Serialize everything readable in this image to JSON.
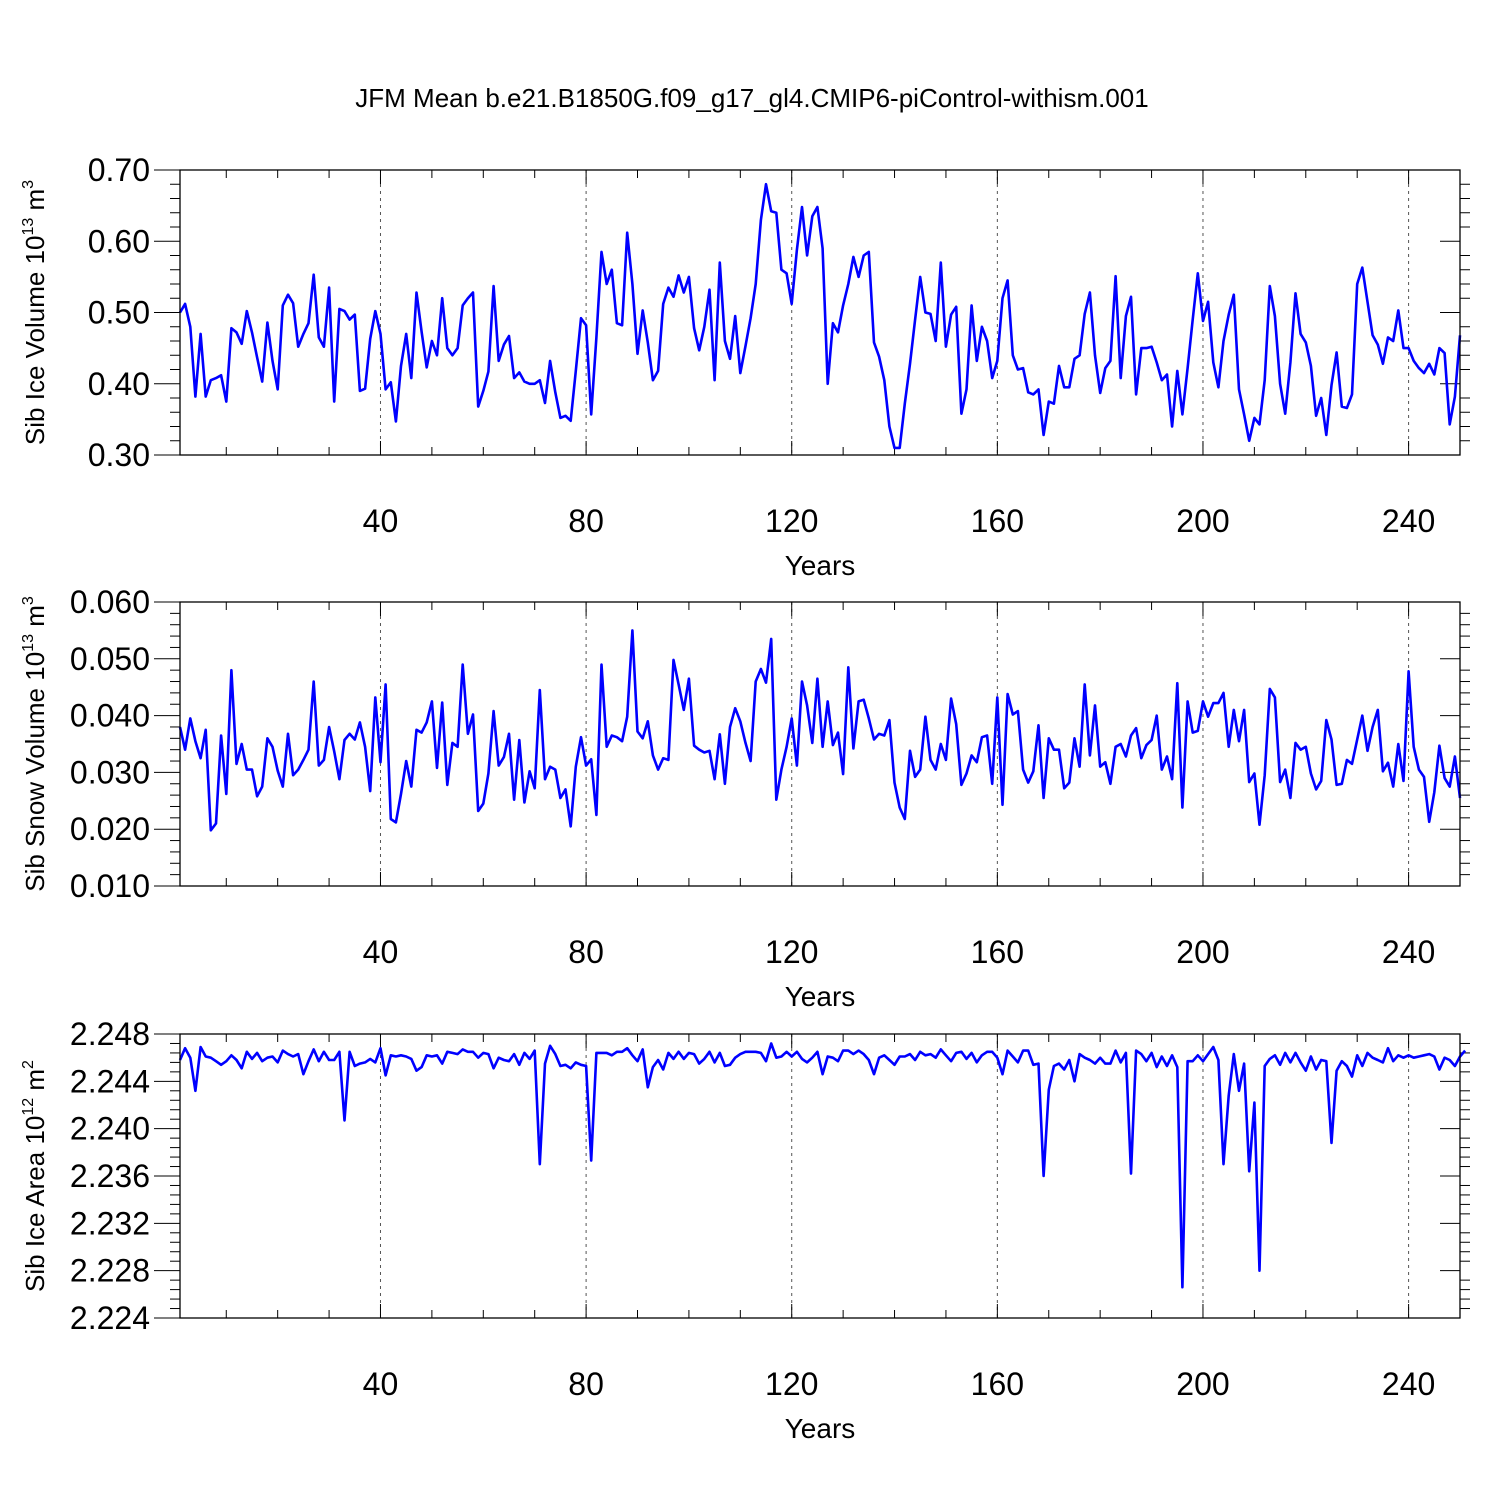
{
  "figure_title": "JFM Mean b.e21.B1850G.f09_g17_gl4.CMIP6-piControl-withism.001",
  "chart_data": [
    {
      "type": "line",
      "ylabel_main": "Sib Ice Volume 10",
      "ylabel_exp": "13",
      "ylabel_unit": " m",
      "ylabel_unit_exp": "3",
      "xlabel": "Years",
      "xlim": [
        1,
        250
      ],
      "ylim": [
        0.3,
        0.7
      ],
      "xticks": [
        40,
        80,
        120,
        160,
        200,
        240
      ],
      "yticks": [
        0.3,
        0.4,
        0.5,
        0.6,
        0.7
      ],
      "ytick_labels": [
        "0.30",
        "0.40",
        "0.50",
        "0.60",
        "0.70"
      ],
      "grid_x": true,
      "color": "#0000ff",
      "values": [
        0.5,
        0.512,
        0.48,
        0.382,
        0.47,
        0.382,
        0.405,
        0.408,
        0.412,
        0.375,
        0.478,
        0.472,
        0.456,
        0.502,
        0.472,
        0.437,
        0.403,
        0.486,
        0.432,
        0.392,
        0.51,
        0.525,
        0.513,
        0.452,
        0.47,
        0.485,
        0.553,
        0.465,
        0.452,
        0.535,
        0.375,
        0.505,
        0.502,
        0.49,
        0.497,
        0.39,
        0.393,
        0.463,
        0.502,
        0.47,
        0.392,
        0.402,
        0.347,
        0.425,
        0.47,
        0.408,
        0.528,
        0.473,
        0.423,
        0.46,
        0.44,
        0.52,
        0.45,
        0.44,
        0.45,
        0.51,
        0.52,
        0.528,
        0.368,
        0.39,
        0.417,
        0.537,
        0.432,
        0.455,
        0.467,
        0.408,
        0.416,
        0.403,
        0.4,
        0.4,
        0.405,
        0.373,
        0.432,
        0.388,
        0.352,
        0.355,
        0.348,
        0.418,
        0.492,
        0.482,
        0.357,
        0.465,
        0.585,
        0.54,
        0.56,
        0.485,
        0.482,
        0.612,
        0.54,
        0.442,
        0.503,
        0.458,
        0.405,
        0.418,
        0.512,
        0.535,
        0.522,
        0.552,
        0.528,
        0.55,
        0.478,
        0.447,
        0.48,
        0.532,
        0.405,
        0.57,
        0.46,
        0.435,
        0.495,
        0.415,
        0.453,
        0.492,
        0.54,
        0.63,
        0.68,
        0.642,
        0.64,
        0.56,
        0.555,
        0.512,
        0.588,
        0.648,
        0.58,
        0.635,
        0.648,
        0.59,
        0.4,
        0.485,
        0.472,
        0.51,
        0.54,
        0.578,
        0.55,
        0.58,
        0.585,
        0.458,
        0.438,
        0.405,
        0.34,
        0.31,
        0.31,
        0.372,
        0.428,
        0.49,
        0.55,
        0.5,
        0.498,
        0.46,
        0.57,
        0.452,
        0.497,
        0.508,
        0.358,
        0.392,
        0.51,
        0.432,
        0.48,
        0.46,
        0.408,
        0.432,
        0.52,
        0.545,
        0.44,
        0.42,
        0.422,
        0.388,
        0.385,
        0.392,
        0.328,
        0.375,
        0.372,
        0.425,
        0.395,
        0.395,
        0.435,
        0.44,
        0.498,
        0.528,
        0.44,
        0.387,
        0.422,
        0.432,
        0.551,
        0.408,
        0.495,
        0.522,
        0.385,
        0.45,
        0.45,
        0.452,
        0.43,
        0.405,
        0.413,
        0.34,
        0.418,
        0.357,
        0.422,
        0.49,
        0.555,
        0.488,
        0.515,
        0.43,
        0.395,
        0.46,
        0.497,
        0.525,
        0.392,
        0.357,
        0.32,
        0.352,
        0.343,
        0.405,
        0.537,
        0.495,
        0.4,
        0.358,
        0.43,
        0.527,
        0.47,
        0.458,
        0.425,
        0.355,
        0.38,
        0.328,
        0.398,
        0.444,
        0.368,
        0.366,
        0.385,
        0.54,
        0.563,
        0.515,
        0.468,
        0.455,
        0.428,
        0.465,
        0.46,
        0.503,
        0.45,
        0.45,
        0.432,
        0.422,
        0.415,
        0.428,
        0.413,
        0.45,
        0.443,
        0.343,
        0.382,
        0.468
      ]
    },
    {
      "type": "line",
      "ylabel_main": "Sib Snow Volume 10",
      "ylabel_exp": "13",
      "ylabel_unit": " m",
      "ylabel_unit_exp": "3",
      "xlabel": "Years",
      "xlim": [
        1,
        250
      ],
      "ylim": [
        0.01,
        0.06
      ],
      "xticks": [
        40,
        80,
        120,
        160,
        200,
        240
      ],
      "yticks": [
        0.01,
        0.02,
        0.03,
        0.04,
        0.05,
        0.06
      ],
      "ytick_labels": [
        "0.010",
        "0.020",
        "0.030",
        "0.040",
        "0.050",
        "0.060"
      ],
      "grid_x": true,
      "color": "#0000ff",
      "values": [
        0.038,
        0.034,
        0.0395,
        0.0355,
        0.0325,
        0.0375,
        0.0198,
        0.021,
        0.0365,
        0.0262,
        0.048,
        0.0315,
        0.035,
        0.0305,
        0.0305,
        0.0258,
        0.0275,
        0.036,
        0.0345,
        0.0303,
        0.0275,
        0.0368,
        0.0295,
        0.0305,
        0.0322,
        0.034,
        0.046,
        0.0312,
        0.0322,
        0.038,
        0.0337,
        0.0288,
        0.0357,
        0.0368,
        0.0358,
        0.0388,
        0.0345,
        0.0267,
        0.0432,
        0.0318,
        0.0455,
        0.0218,
        0.0212,
        0.0262,
        0.032,
        0.0275,
        0.0375,
        0.037,
        0.0388,
        0.0425,
        0.0308,
        0.0423,
        0.0278,
        0.0352,
        0.0345,
        0.049,
        0.0368,
        0.0402,
        0.0232,
        0.0245,
        0.0298,
        0.0408,
        0.0312,
        0.0327,
        0.0368,
        0.0252,
        0.0357,
        0.0247,
        0.0302,
        0.0272,
        0.0445,
        0.0288,
        0.031,
        0.0305,
        0.0255,
        0.027,
        0.0205,
        0.031,
        0.0362,
        0.0312,
        0.0323,
        0.0225,
        0.049,
        0.0345,
        0.0365,
        0.0362,
        0.0355,
        0.0398,
        0.055,
        0.0372,
        0.036,
        0.039,
        0.033,
        0.0305,
        0.0325,
        0.0322,
        0.0498,
        0.0455,
        0.041,
        0.0465,
        0.0347,
        0.034,
        0.0335,
        0.0338,
        0.0288,
        0.0367,
        0.028,
        0.038,
        0.0413,
        0.039,
        0.0352,
        0.032,
        0.046,
        0.0482,
        0.0458,
        0.0535,
        0.0252,
        0.0305,
        0.0345,
        0.0395,
        0.0312,
        0.046,
        0.0418,
        0.0352,
        0.0465,
        0.0345,
        0.0425,
        0.0348,
        0.037,
        0.0297,
        0.0485,
        0.0342,
        0.0425,
        0.0428,
        0.0395,
        0.0358,
        0.0368,
        0.0365,
        0.0392,
        0.0282,
        0.0238,
        0.0218,
        0.0338,
        0.0292,
        0.0305,
        0.0398,
        0.0322,
        0.0305,
        0.035,
        0.0322,
        0.043,
        0.0385,
        0.0278,
        0.0298,
        0.033,
        0.0318,
        0.0362,
        0.0365,
        0.028,
        0.0432,
        0.0243,
        0.0438,
        0.0402,
        0.0408,
        0.0305,
        0.0282,
        0.0302,
        0.0383,
        0.0255,
        0.036,
        0.034,
        0.034,
        0.0272,
        0.0282,
        0.036,
        0.031,
        0.0455,
        0.033,
        0.0418,
        0.031,
        0.0318,
        0.028,
        0.0345,
        0.035,
        0.0328,
        0.0365,
        0.0378,
        0.0325,
        0.0348,
        0.0357,
        0.04,
        0.0305,
        0.0328,
        0.0288,
        0.0457,
        0.0238,
        0.0425,
        0.037,
        0.0373,
        0.0425,
        0.0398,
        0.0422,
        0.0422,
        0.044,
        0.0345,
        0.041,
        0.0355,
        0.041,
        0.0283,
        0.0298,
        0.0208,
        0.0295,
        0.0447,
        0.0432,
        0.0283,
        0.0305,
        0.0255,
        0.0352,
        0.034,
        0.0345,
        0.0298,
        0.027,
        0.0285,
        0.0392,
        0.0358,
        0.0278,
        0.028,
        0.0322,
        0.0315,
        0.0358,
        0.04,
        0.0338,
        0.038,
        0.041,
        0.0302,
        0.0317,
        0.0275,
        0.035,
        0.0285,
        0.0478,
        0.0345,
        0.0305,
        0.0292,
        0.0213,
        0.0265,
        0.0347,
        0.029,
        0.0275,
        0.0328,
        0.0255
      ]
    },
    {
      "type": "line",
      "ylabel_main": "Sib Ice Area 10",
      "ylabel_exp": "12",
      "ylabel_unit": " m",
      "ylabel_unit_exp": "2",
      "xlabel": "Years",
      "xlim": [
        1,
        250
      ],
      "ylim": [
        2.224,
        2.248
      ],
      "xticks": [
        40,
        80,
        120,
        160,
        200,
        240
      ],
      "yticks": [
        2.224,
        2.228,
        2.232,
        2.236,
        2.24,
        2.244,
        2.248
      ],
      "ytick_labels": [
        "2.224",
        "2.228",
        "2.232",
        "2.236",
        "2.240",
        "2.244",
        "2.248"
      ],
      "grid_x": true,
      "color": "#0000ff",
      "values": [
        2.2458,
        2.2468,
        2.246,
        2.2432,
        2.2469,
        2.2461,
        2.246,
        2.2457,
        2.2454,
        2.2457,
        2.2462,
        2.2458,
        2.2451,
        2.2465,
        2.2459,
        2.2464,
        2.2457,
        2.246,
        2.2461,
        2.2456,
        2.2466,
        2.2463,
        2.2461,
        2.2463,
        2.2446,
        2.2457,
        2.2467,
        2.2457,
        2.2465,
        2.2458,
        2.2458,
        2.2465,
        2.2407,
        2.2465,
        2.2453,
        2.2455,
        2.2456,
        2.2459,
        2.2456,
        2.2468,
        2.2445,
        2.2462,
        2.2461,
        2.2462,
        2.2461,
        2.2459,
        2.2449,
        2.2452,
        2.2462,
        2.2461,
        2.2462,
        2.2455,
        2.2465,
        2.2464,
        2.2463,
        2.2467,
        2.2465,
        2.2465,
        2.246,
        2.2464,
        2.2463,
        2.2451,
        2.246,
        2.2458,
        2.2457,
        2.2463,
        2.2454,
        2.2464,
        2.2459,
        2.2466,
        2.237,
        2.2455,
        2.247,
        2.2463,
        2.2453,
        2.2454,
        2.2451,
        2.2456,
        2.2454,
        2.2453,
        2.2373,
        2.2464,
        2.2464,
        2.2464,
        2.2462,
        2.2465,
        2.2465,
        2.2468,
        2.2462,
        2.2457,
        2.2467,
        2.2435,
        2.2452,
        2.2458,
        2.245,
        2.2464,
        2.2459,
        2.2465,
        2.2459,
        2.2464,
        2.2463,
        2.2455,
        2.2459,
        2.2465,
        2.2456,
        2.2464,
        2.2453,
        2.2454,
        2.246,
        2.2463,
        2.2465,
        2.2465,
        2.2465,
        2.2464,
        2.2457,
        2.2472,
        2.246,
        2.2461,
        2.2465,
        2.2461,
        2.2465,
        2.2459,
        2.2456,
        2.246,
        2.2465,
        2.2446,
        2.2461,
        2.246,
        2.2457,
        2.2466,
        2.2466,
        2.2463,
        2.2466,
        2.2463,
        2.2458,
        2.2446,
        2.246,
        2.2462,
        2.2458,
        2.2454,
        2.2461,
        2.2461,
        2.2463,
        2.2458,
        2.2465,
        2.2462,
        2.2463,
        2.246,
        2.2467,
        2.2462,
        2.2457,
        2.2464,
        2.2465,
        2.2459,
        2.2464,
        2.2456,
        2.2462,
        2.2465,
        2.2465,
        2.246,
        2.2446,
        2.2466,
        2.2461,
        2.2456,
        2.2466,
        2.2466,
        2.2454,
        2.2455,
        2.236,
        2.2433,
        2.2453,
        2.2455,
        2.245,
        2.2458,
        2.244,
        2.2463,
        2.246,
        2.2458,
        2.2455,
        2.246,
        2.2455,
        2.2455,
        2.2466,
        2.2456,
        2.2464,
        2.2362,
        2.2466,
        2.2463,
        2.2457,
        2.2464,
        2.2452,
        2.2461,
        2.2453,
        2.2462,
        2.2452,
        2.2266,
        2.2457,
        2.2457,
        2.2462,
        2.2457,
        2.2463,
        2.2469,
        2.2458,
        2.237,
        2.2428,
        2.2463,
        2.2432,
        2.2455,
        2.2364,
        2.2422,
        2.228,
        2.2453,
        2.2459,
        2.2462,
        2.2454,
        2.2464,
        2.2456,
        2.2464,
        2.2456,
        2.2449,
        2.2461,
        2.245,
        2.2458,
        2.2457,
        2.2388,
        2.2449,
        2.2457,
        2.2453,
        2.2444,
        2.2462,
        2.2453,
        2.2464,
        2.246,
        2.2458,
        2.2456,
        2.2468,
        2.2457,
        2.2462,
        2.246,
        2.2462,
        2.246,
        2.2461,
        2.2462,
        2.2463,
        2.2461,
        2.245,
        2.246,
        2.2458,
        2.2453,
        2.2461,
        2.2466
      ]
    }
  ]
}
